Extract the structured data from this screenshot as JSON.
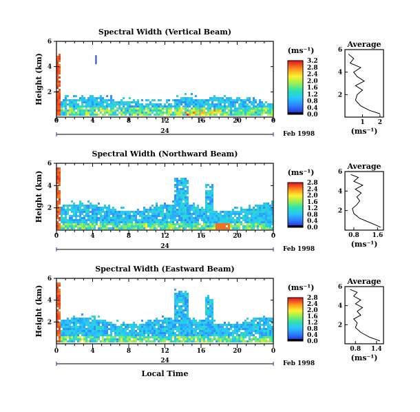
{
  "chart_data": [
    {
      "type": "heatmap",
      "title": "Spectral Width (Vertical Beam)",
      "ylabel": "Height (km)",
      "yticks": [
        "2",
        "4",
        "6"
      ],
      "xticks": [
        "0",
        "4",
        "8",
        "12",
        "16",
        "20",
        "0"
      ],
      "xlim": [
        0,
        24
      ],
      "ylim": [
        0,
        6
      ],
      "day_label": "24",
      "date_label": "Feb 1998",
      "colorbar": {
        "unit": "(ms⁻¹)",
        "ticks": [
          "0.0",
          "0.4",
          "0.8",
          "1.2",
          "1.6",
          "2.0",
          "2.4",
          "2.8",
          "3.2"
        ]
      },
      "profile": {
        "title": "Average",
        "xlabel": "(ms⁻¹)",
        "xticks": [
          "1",
          "2"
        ],
        "xlim": [
          0,
          2.2
        ],
        "heights": [
          0.3,
          0.6,
          1.0,
          1.5,
          2.0,
          2.4,
          2.8,
          3.2,
          3.6,
          4.0,
          4.4,
          4.8,
          5.2,
          5.6
        ],
        "values": [
          2.0,
          1.4,
          0.9,
          0.6,
          0.7,
          1.0,
          0.6,
          1.1,
          0.7,
          0.5,
          0.9,
          0.3,
          0.5,
          0.2
        ]
      }
    },
    {
      "type": "heatmap",
      "title": "Spectral Width (Northward Beam)",
      "ylabel": "Height (km)",
      "yticks": [
        "2",
        "4",
        "6"
      ],
      "xticks": [
        "0",
        "4",
        "8",
        "12",
        "16",
        "20",
        "0"
      ],
      "xlim": [
        0,
        24
      ],
      "ylim": [
        0,
        6
      ],
      "day_label": "24",
      "date_label": "Feb 1998",
      "colorbar": {
        "unit": "(ms⁻¹)",
        "ticks": [
          "0.0",
          "0.4",
          "0.8",
          "1.2",
          "1.6",
          "2.0",
          "2.4",
          "2.8"
        ]
      },
      "profile": {
        "title": "Average",
        "xlabel": "(ms⁻¹)",
        "xticks": [
          "0.8",
          "1.6"
        ],
        "xlim": [
          0.5,
          1.8
        ],
        "heights": [
          0.3,
          0.7,
          1.2,
          1.7,
          2.2,
          2.6,
          3.0,
          3.4,
          3.8,
          4.2,
          4.6,
          5.0,
          5.4,
          5.7
        ],
        "values": [
          1.7,
          1.4,
          1.0,
          0.8,
          0.75,
          0.9,
          1.0,
          0.9,
          1.05,
          0.85,
          1.1,
          0.8,
          0.95,
          0.7
        ]
      }
    },
    {
      "type": "heatmap",
      "title": "Spectral Width (Eastward Beam)",
      "ylabel": "Height (km)",
      "yticks": [
        "2",
        "4",
        "6"
      ],
      "xticks": [
        "0",
        "4",
        "8",
        "12",
        "16",
        "20",
        "0"
      ],
      "xlim": [
        0,
        24
      ],
      "ylim": [
        0,
        6
      ],
      "day_label": "24",
      "date_label": "Feb 1998",
      "xlabel": "Local Time",
      "colorbar": {
        "unit": "(ms⁻¹)",
        "ticks": [
          "0.0",
          "0.4",
          "0.8",
          "1.2",
          "1.6",
          "2.0",
          "2.4",
          "2.8"
        ]
      },
      "profile": {
        "title": "Average",
        "xlabel": "(ms⁻¹)",
        "xticks": [
          "0.8",
          "1.4"
        ],
        "xlim": [
          0.5,
          1.6
        ],
        "heights": [
          0.3,
          0.7,
          1.2,
          1.7,
          2.2,
          2.6,
          3.0,
          3.4,
          3.8,
          4.2,
          4.6,
          5.0,
          5.4,
          5.7
        ],
        "values": [
          1.5,
          1.2,
          0.95,
          0.8,
          0.85,
          0.75,
          0.95,
          0.85,
          1.0,
          0.8,
          0.95,
          0.75,
          0.85,
          0.65
        ]
      }
    }
  ]
}
